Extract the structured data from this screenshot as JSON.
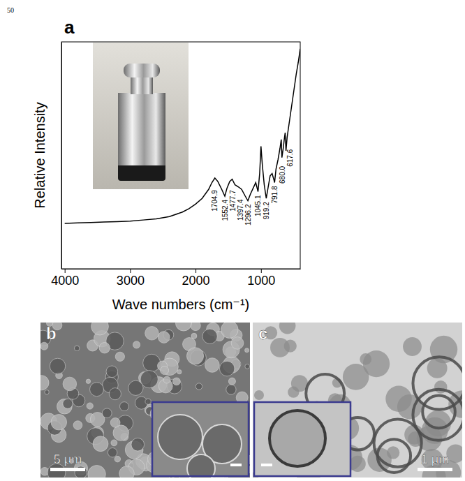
{
  "page_number": "50",
  "chart_data": {
    "type": "line",
    "panel": "a",
    "x_label": "Wave numbers (cm⁻¹)",
    "y_label": "Relative Intensity",
    "x": [
      4000,
      3800,
      3600,
      3400,
      3200,
      3000,
      2800,
      2600,
      2400,
      2200,
      2100,
      2000,
      1900,
      1800,
      1750,
      1704.9,
      1660,
      1600,
      1552.4,
      1520,
      1477.7,
      1440,
      1397.4,
      1340,
      1296.2,
      1240,
      1200,
      1160,
      1120,
      1080,
      1045.1,
      1020,
      1000,
      980,
      950,
      919.2,
      890,
      860,
      830,
      800,
      791.8,
      770,
      740,
      710,
      690,
      680,
      660,
      640,
      630,
      617.6,
      600,
      570,
      540,
      500,
      460,
      430,
      400
    ],
    "values": [
      20,
      20.2,
      20.4,
      20.6,
      20.8,
      21,
      21.5,
      22,
      23,
      25,
      26.5,
      28.5,
      31,
      35,
      38,
      40,
      38.5,
      35,
      32,
      35.5,
      38.5,
      39.5,
      37,
      36,
      35,
      32,
      30,
      33,
      35.5,
      38,
      34,
      42,
      54,
      46,
      37,
      31,
      36,
      41,
      42,
      39,
      38,
      44,
      48,
      53,
      57,
      49,
      53,
      58,
      60,
      52,
      58,
      64,
      70,
      78,
      86,
      91,
      97
    ],
    "color": "#000000",
    "xlim": [
      4050,
      400
    ],
    "xticks": [
      4000,
      3000,
      2000,
      1000
    ],
    "ylim": [
      0,
      100
    ],
    "tick_labels": "x",
    "grid": false,
    "annotations": [
      {
        "x": 1704.9,
        "label": "1704.9"
      },
      {
        "x": 1552.4,
        "label": "1552.4"
      },
      {
        "x": 1477.7,
        "label": "1477.7"
      },
      {
        "x": 1397.4,
        "label": "1397.4"
      },
      {
        "x": 1296.2,
        "label": "1296.2"
      },
      {
        "x": 1045.1,
        "label": "1045.1"
      },
      {
        "x": 919.2,
        "label": "919.2"
      },
      {
        "x": 791.8,
        "label": "791.8"
      },
      {
        "x": 680.0,
        "label": "680.0"
      },
      {
        "x": 617.6,
        "label": "617.6"
      }
    ]
  },
  "images": [
    {
      "letter": "b",
      "scale_bar": "5 μm"
    },
    {
      "letter": "c",
      "scale_bar": "1 μm"
    }
  ]
}
